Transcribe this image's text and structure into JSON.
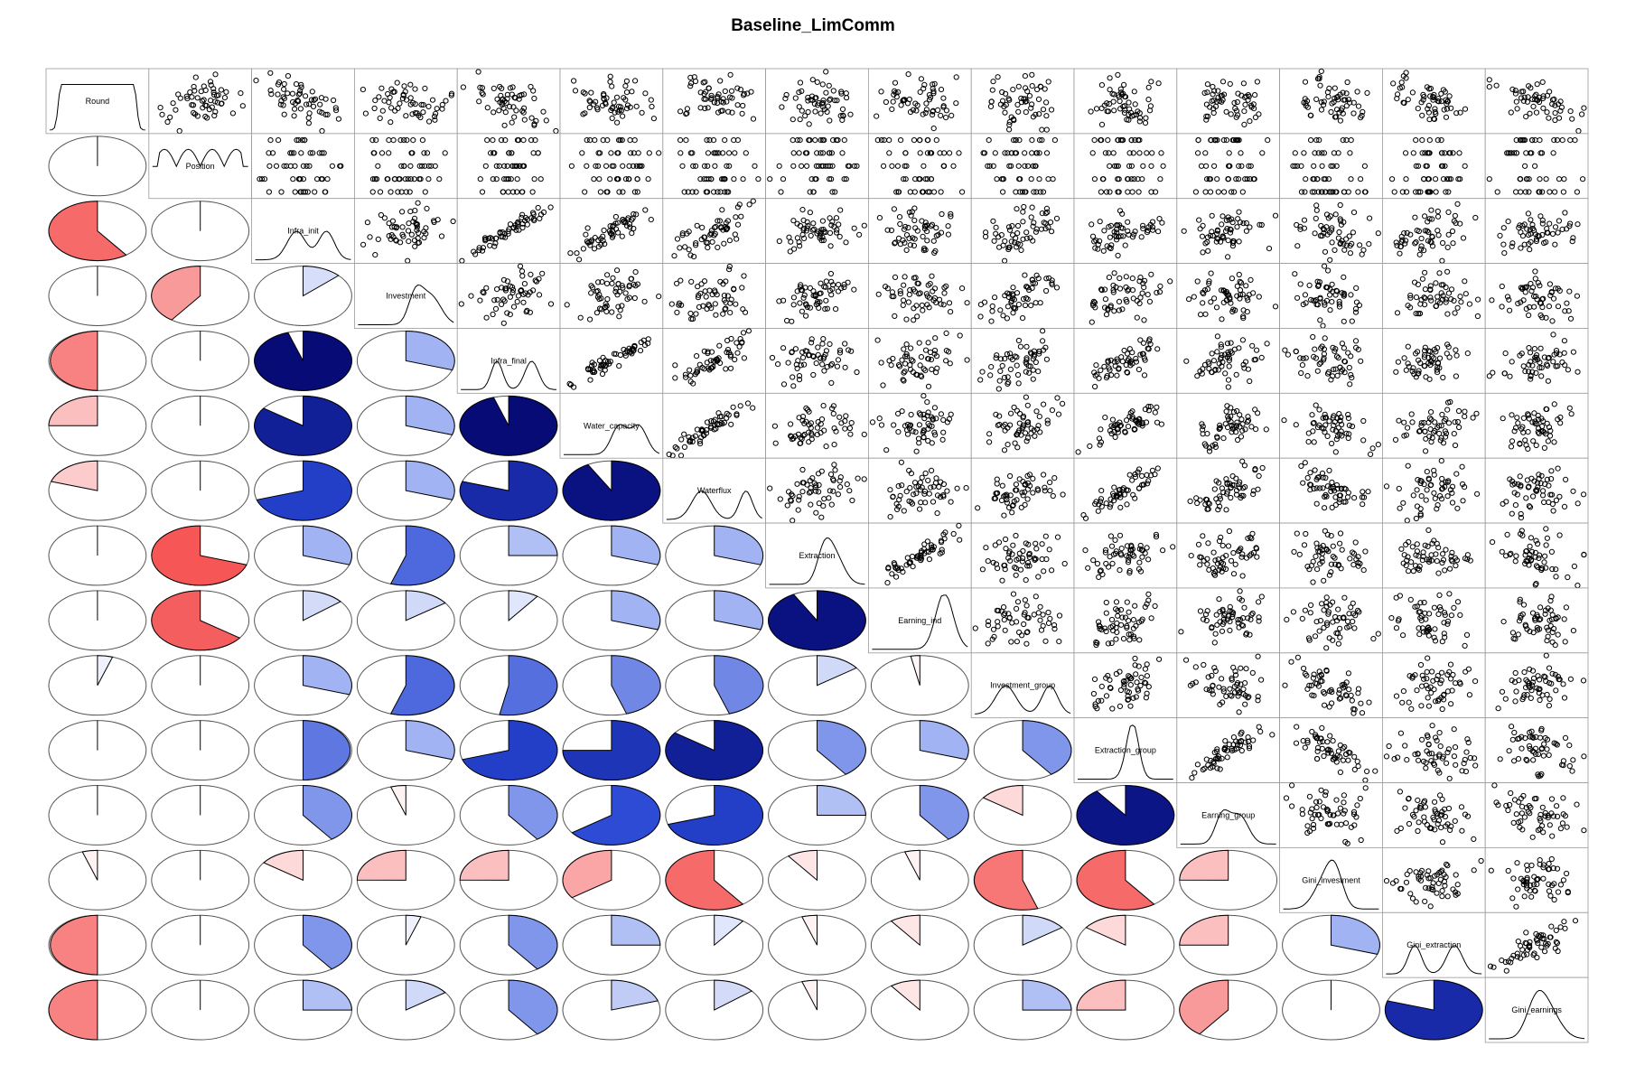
{
  "chart_data": {
    "type": "corrgram",
    "title": "Baseline_LimComm",
    "variables": [
      "Round",
      "Position",
      "Infra_init",
      "Investment",
      "Infra_final",
      "Water_capacity",
      "Waterflux",
      "Extraction",
      "Earning_ind",
      "Investment_group",
      "Extraction_group",
      "Earning_group",
      "Gini_investment",
      "Gini_extraction",
      "Gini_earnings"
    ],
    "lower_panel": "pie",
    "upper_panel": "scatter",
    "diagonal_panel": "density",
    "color_scale": {
      "negative": "#ff3030",
      "positive": "#000066",
      "zero": "#ffffff"
    },
    "correlations": [
      [
        1,
        0,
        0,
        0,
        0,
        0,
        0,
        0,
        0,
        0,
        0,
        0,
        0,
        0,
        0
      ],
      [
        0,
        1,
        0,
        0,
        0,
        0,
        0,
        0,
        0,
        0,
        0,
        0,
        0,
        0,
        0
      ],
      [
        -0.6,
        0,
        1,
        0,
        0,
        0,
        0,
        0,
        0,
        0,
        0,
        0,
        0,
        0,
        0
      ],
      [
        0,
        -0.4,
        0.13,
        1,
        0,
        0,
        0,
        0,
        0,
        0,
        0,
        0,
        0,
        0,
        0
      ],
      [
        -0.5,
        0,
        0.95,
        0.3,
        1,
        0,
        0,
        0,
        0,
        0,
        0,
        0,
        0,
        0,
        0
      ],
      [
        -0.25,
        0,
        0.85,
        0.3,
        0.95,
        1,
        0,
        0,
        0,
        0,
        0,
        0,
        0,
        0,
        0
      ],
      [
        -0.2,
        0,
        0.7,
        0.3,
        0.8,
        0.92,
        1,
        0,
        0,
        0,
        0,
        0,
        0,
        0,
        0
      ],
      [
        0,
        -0.7,
        0.3,
        0.55,
        0.25,
        0.3,
        0.3,
        1,
        0,
        0,
        0,
        0,
        0,
        0,
        0
      ],
      [
        0,
        -0.65,
        0.14,
        0.15,
        0.1,
        0.3,
        0.3,
        0.92,
        1,
        0,
        0,
        0,
        0,
        0,
        0
      ],
      [
        0.05,
        0,
        0.3,
        0.55,
        0.53,
        0.45,
        0.45,
        0.15,
        -0.03,
        1,
        0,
        0,
        0,
        0,
        0
      ],
      [
        0,
        0,
        0.5,
        0.3,
        0.7,
        0.75,
        0.85,
        0.4,
        0.3,
        0.4,
        1,
        0,
        0,
        0,
        0
      ],
      [
        0,
        0,
        0.4,
        -0.05,
        0.4,
        0.65,
        0.7,
        0.25,
        0.4,
        -0.15,
        0.9,
        1,
        0,
        0,
        0
      ],
      [
        -0.05,
        0,
        -0.15,
        -0.25,
        -0.25,
        -0.35,
        -0.6,
        -0.1,
        -0.05,
        -0.55,
        -0.6,
        -0.25,
        1,
        0,
        0
      ],
      [
        -0.5,
        0,
        0.4,
        0.05,
        0.4,
        0.25,
        0.1,
        -0.05,
        -0.1,
        0.15,
        -0.15,
        -0.25,
        0.3,
        1,
        0
      ],
      [
        -0.5,
        0,
        0.25,
        0.15,
        0.4,
        0.2,
        0.14,
        -0.05,
        -0.1,
        0.25,
        -0.25,
        -0.4,
        0,
        0.8,
        1
      ]
    ]
  }
}
